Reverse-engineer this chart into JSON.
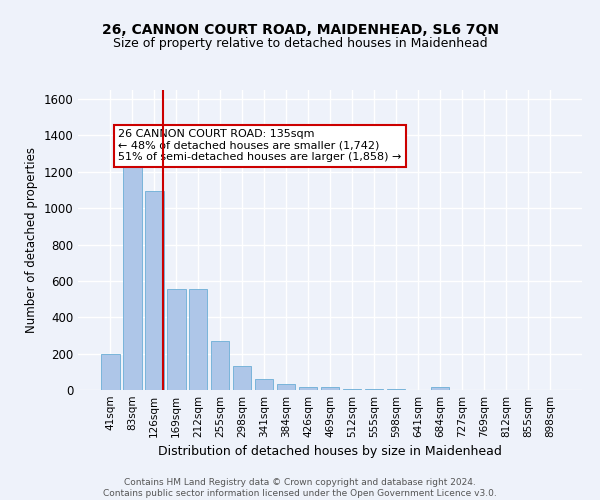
{
  "title": "26, CANNON COURT ROAD, MAIDENHEAD, SL6 7QN",
  "subtitle": "Size of property relative to detached houses in Maidenhead",
  "xlabel": "Distribution of detached houses by size in Maidenhead",
  "ylabel": "Number of detached properties",
  "footer_line1": "Contains HM Land Registry data © Crown copyright and database right 2024.",
  "footer_line2": "Contains public sector information licensed under the Open Government Licence v3.0.",
  "categories": [
    "41sqm",
    "83sqm",
    "126sqm",
    "169sqm",
    "212sqm",
    "255sqm",
    "298sqm",
    "341sqm",
    "384sqm",
    "426sqm",
    "469sqm",
    "512sqm",
    "555sqm",
    "598sqm",
    "641sqm",
    "684sqm",
    "727sqm",
    "769sqm",
    "812sqm",
    "855sqm",
    "898sqm"
  ],
  "values": [
    197,
    1265,
    1097,
    553,
    553,
    268,
    130,
    60,
    33,
    18,
    14,
    7,
    4,
    3,
    0,
    14,
    0,
    0,
    0,
    0,
    0
  ],
  "bar_color": "#aec6e8",
  "bar_edge_color": "#6baed6",
  "vline_x": 2.42,
  "vline_color": "#cc0000",
  "annotation_box_text": "26 CANNON COURT ROAD: 135sqm\n← 48% of detached houses are smaller (1,742)\n51% of semi-detached houses are larger (1,858) →",
  "ylim": [
    0,
    1650
  ],
  "yticks": [
    0,
    200,
    400,
    600,
    800,
    1000,
    1200,
    1400,
    1600
  ],
  "bg_color": "#eef2fa",
  "grid_color": "#ffffff",
  "title_fontsize": 10,
  "subtitle_fontsize": 9
}
